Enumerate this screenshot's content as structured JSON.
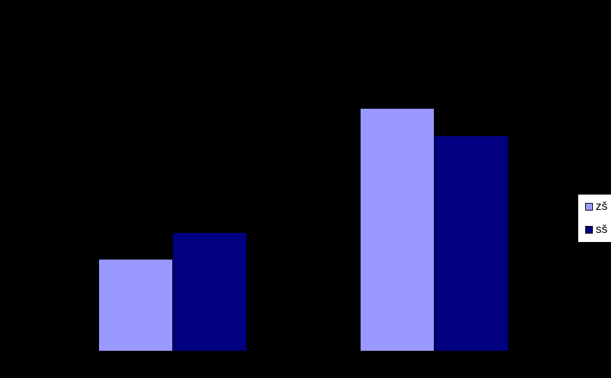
{
  "chart_data": {
    "type": "bar",
    "categories": [
      "",
      ""
    ],
    "series": [
      {
        "name": "zš",
        "values": [
          130,
          345
        ],
        "color": "#9999ff"
      },
      {
        "name": "sš",
        "values": [
          168,
          306
        ],
        "color": "#000080"
      }
    ],
    "ylim": [
      0,
      500
    ],
    "grid": false,
    "legend": "right",
    "background": "#000000"
  }
}
